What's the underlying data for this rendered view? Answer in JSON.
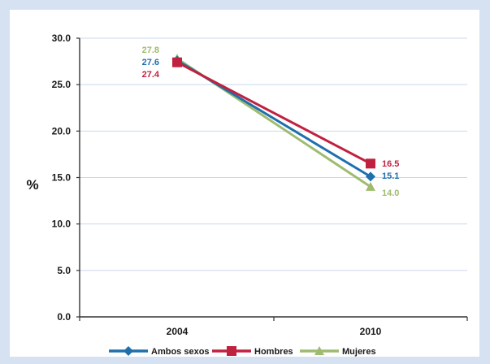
{
  "chart_data": {
    "type": "line",
    "ylabel": "%",
    "ylim": [
      0,
      30
    ],
    "yticks": [
      "0.0",
      "5.0",
      "10.0",
      "15.0",
      "20.0",
      "25.0",
      "30.0"
    ],
    "categories": [
      "2004",
      "2010"
    ],
    "grid": true,
    "legend_position": "bottom",
    "series": [
      {
        "name": "Ambos sexos",
        "values": [
          27.6,
          15.1
        ],
        "labels": [
          "27.6",
          "15.1"
        ],
        "color": "#1f6fad",
        "marker": "diamond"
      },
      {
        "name": "Hombres",
        "values": [
          27.4,
          16.5
        ],
        "labels": [
          "27.4",
          "16.5"
        ],
        "color": "#c0213f",
        "marker": "square"
      },
      {
        "name": "Mujeres",
        "values": [
          27.8,
          14.0
        ],
        "labels": [
          "27.8",
          "14.0"
        ],
        "color": "#9fbb6f",
        "marker": "triangle"
      }
    ]
  }
}
